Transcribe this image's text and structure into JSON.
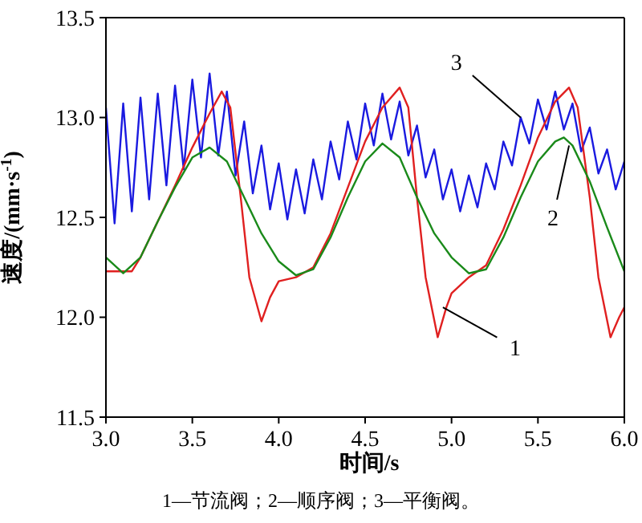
{
  "chart_data": {
    "type": "line",
    "xlabel": "时间/s",
    "ylabel": "速度/(mm·s$^{-1}$)",
    "xlim": [
      3,
      6
    ],
    "xticks": [
      {
        "value": 3,
        "label": "3.0"
      },
      {
        "value": 3.5,
        "label": "3.5"
      },
      {
        "value": 4,
        "label": "4.0"
      },
      {
        "value": 4.5,
        "label": "4.5"
      },
      {
        "value": 5,
        "label": "5.0"
      },
      {
        "value": 5.5,
        "label": "5.5"
      },
      {
        "value": 6,
        "label": "6.0"
      }
    ],
    "ylim": [
      11.5,
      13.5
    ],
    "yticks": [
      {
        "value": 11.5,
        "label": "11.5"
      },
      {
        "value": 12,
        "label": "12.0"
      },
      {
        "value": 12.5,
        "label": "12.5"
      },
      {
        "value": 13,
        "label": "13.0"
      },
      {
        "value": 13.5,
        "label": "13.5"
      }
    ],
    "marker": "none",
    "line_style": "solid",
    "series": [
      {
        "color": "#1a1ae0",
        "x": [
          3.0,
          3.05,
          3.1,
          3.15,
          3.2,
          3.25,
          3.3,
          3.35,
          3.4,
          3.45,
          3.5,
          3.55,
          3.6,
          3.65,
          3.7,
          3.75,
          3.8,
          3.85,
          3.9,
          3.95,
          4.0,
          4.05,
          4.1,
          4.15,
          4.2,
          4.25,
          4.3,
          4.35,
          4.4,
          4.45,
          4.5,
          4.55,
          4.6,
          4.65,
          4.7,
          4.75,
          4.8,
          4.85,
          4.9,
          4.95,
          5.0,
          5.05,
          5.1,
          5.15,
          5.2,
          5.25,
          5.3,
          5.35,
          5.4,
          5.45,
          5.5,
          5.55,
          5.6,
          5.65,
          5.7,
          5.75,
          5.8,
          5.85,
          5.9,
          5.95,
          6.0
        ],
        "values": [
          13.05,
          12.47,
          13.07,
          12.53,
          13.1,
          12.59,
          13.12,
          12.66,
          13.16,
          12.74,
          13.19,
          12.8,
          13.22,
          12.81,
          13.13,
          12.71,
          12.98,
          12.62,
          12.86,
          12.54,
          12.77,
          12.49,
          12.74,
          12.52,
          12.79,
          12.59,
          12.88,
          12.69,
          12.98,
          12.79,
          13.07,
          12.86,
          13.12,
          12.89,
          13.08,
          12.81,
          12.96,
          12.7,
          12.84,
          12.59,
          12.74,
          12.53,
          12.71,
          12.55,
          12.77,
          12.64,
          12.88,
          12.76,
          13.0,
          12.87,
          13.09,
          12.94,
          13.13,
          12.94,
          13.07,
          12.83,
          12.95,
          12.72,
          12.84,
          12.64,
          12.78
        ]
      },
      {
        "color": "#e02020",
        "x": [
          3.0,
          3.15,
          3.2,
          3.3,
          3.4,
          3.5,
          3.6,
          3.67,
          3.72,
          3.78,
          3.83,
          3.9,
          3.95,
          4.0,
          4.1,
          4.2,
          4.3,
          4.4,
          4.5,
          4.6,
          4.7,
          4.75,
          4.8,
          4.85,
          4.92,
          4.97,
          5.0,
          5.1,
          5.2,
          5.3,
          5.4,
          5.5,
          5.6,
          5.68,
          5.73,
          5.8,
          5.85,
          5.92,
          5.97,
          6.0
        ],
        "values": [
          12.23,
          12.23,
          12.3,
          12.48,
          12.66,
          12.85,
          13.02,
          13.13,
          13.05,
          12.6,
          12.2,
          11.98,
          12.1,
          12.18,
          12.2,
          12.25,
          12.42,
          12.65,
          12.88,
          13.05,
          13.15,
          13.05,
          12.6,
          12.2,
          11.9,
          12.05,
          12.12,
          12.2,
          12.26,
          12.44,
          12.66,
          12.9,
          13.08,
          13.15,
          13.05,
          12.6,
          12.2,
          11.9,
          12.0,
          12.05
        ]
      },
      {
        "color": "#1a8a1a",
        "x": [
          3.0,
          3.1,
          3.2,
          3.3,
          3.4,
          3.5,
          3.6,
          3.7,
          3.8,
          3.9,
          4.0,
          4.1,
          4.2,
          4.3,
          4.4,
          4.5,
          4.6,
          4.7,
          4.8,
          4.9,
          5.0,
          5.1,
          5.2,
          5.3,
          5.4,
          5.5,
          5.6,
          5.65,
          5.7,
          5.8,
          5.9,
          6.0
        ],
        "values": [
          12.3,
          12.22,
          12.3,
          12.48,
          12.65,
          12.8,
          12.85,
          12.78,
          12.6,
          12.42,
          12.28,
          12.21,
          12.24,
          12.4,
          12.6,
          12.78,
          12.87,
          12.8,
          12.6,
          12.42,
          12.3,
          12.22,
          12.24,
          12.4,
          12.6,
          12.78,
          12.88,
          12.9,
          12.86,
          12.68,
          12.45,
          12.23
        ]
      }
    ],
    "annotations": [
      {
        "text": "1",
        "x": 4.95,
        "y": 12.05
      },
      {
        "text": "2",
        "x": 5.68,
        "y": 12.86
      },
      {
        "text": "3",
        "x": 5.4,
        "y": 13.0
      },
      "1—节流阀；2—顺序阀；3—平衡阀。"
    ]
  }
}
